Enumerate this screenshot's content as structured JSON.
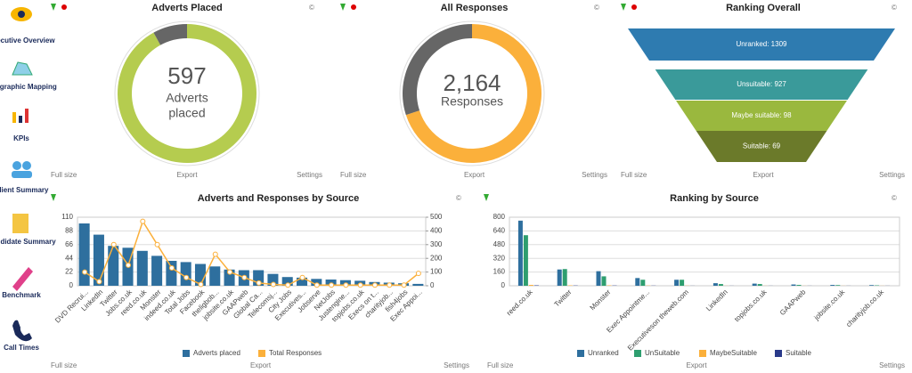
{
  "sidebar": [
    "Executive Overview",
    "Geographic Mapping",
    "KPIs",
    "Client Summary",
    "Candidate Summary",
    "Benchmark",
    "Call Times"
  ],
  "panel_links": {
    "full_size": "Full size",
    "export": "Export",
    "settings": "Settings",
    "copyright": "©"
  },
  "chart_data": [
    {
      "type": "donut",
      "title": "Adverts Placed",
      "center_value": 597,
      "center_label_lines": [
        "Adverts",
        "placed"
      ],
      "values": [
        92,
        8
      ],
      "colors": [
        "#b5cc4f",
        "#666666"
      ]
    },
    {
      "type": "donut",
      "title": "All Responses",
      "center_value": 2164,
      "center_value_label": "2,164",
      "center_label_lines": [
        "Responses"
      ],
      "values": [
        70,
        30
      ],
      "colors": [
        "#fbb03b",
        "#666666"
      ]
    },
    {
      "type": "funnel",
      "title": "Ranking Overall",
      "categories": [
        "Unranked",
        "Unsuitable",
        "Maybe suitable",
        "Suitable"
      ],
      "values": [
        1309,
        927,
        98,
        69
      ],
      "value_labels": [
        "Unranked: 1309",
        "Unsuitable: 927",
        "Maybe suitable: 98",
        "Suitable: 69"
      ],
      "colors": [
        "#2e7bb0",
        "#3a9a9a",
        "#9ab83e",
        "#6b7a2a"
      ]
    },
    {
      "type": "bar_line",
      "title": "Adverts and Responses by Source",
      "categories": [
        "DVD Recrui...",
        "LinkedIn",
        "Twitter",
        "Jobs.co.uk",
        "reed.co.uk",
        "Monster",
        "indeed.co.uk",
        "Total Jobs",
        "Facebook",
        "theligbob...",
        "jobsite.co.uk",
        "GAAPweb",
        "Global Ca...",
        "Telecomsj...",
        "City Jobs",
        "Executives...",
        "Jobserve",
        "NetJobs",
        "Justengine...",
        "topjobs.co.uk",
        "Execs on t...",
        "charityjob...",
        "fish4jobs",
        "Exec Appoi..."
      ],
      "series": [
        {
          "name": "Adverts placed",
          "color": "#2e6f9e",
          "values": [
            100,
            82,
            64,
            61,
            56,
            48,
            40,
            38,
            35,
            31,
            26,
            25,
            25,
            19,
            14,
            13,
            11,
            10,
            9,
            8,
            6,
            5,
            4,
            3
          ]
        },
        {
          "name": "Total Responses",
          "color": "#fbb03b",
          "axis": "y2",
          "values": [
            100,
            30,
            300,
            150,
            470,
            300,
            130,
            60,
            10,
            230,
            100,
            60,
            20,
            10,
            5,
            60,
            5,
            5,
            5,
            5,
            5,
            5,
            5,
            90
          ]
        }
      ],
      "ylim": [
        0,
        110
      ],
      "yticks": [
        0,
        22,
        44,
        66,
        88,
        110
      ],
      "y2lim": [
        0,
        500
      ],
      "y2ticks": [
        0,
        100,
        200,
        300,
        400,
        500
      ],
      "grid": true
    },
    {
      "type": "grouped_bar",
      "title": "Ranking by Source",
      "categories": [
        "reed.co.uk",
        "Twitter",
        "Monster",
        "Exec Appointme...",
        "Executiveson theweb.com",
        "LinkedIn",
        "topjobs.co.uk",
        "GAAPweb",
        "jobsite.co.uk",
        "charityjob.co.uk"
      ],
      "series": [
        {
          "name": "Unranked",
          "color": "#2e6f9e",
          "values": [
            760,
            190,
            170,
            90,
            70,
            30,
            25,
            15,
            10,
            8
          ]
        },
        {
          "name": "UnSuitable",
          "color": "#2e9e6f",
          "values": [
            590,
            195,
            110,
            70,
            70,
            20,
            20,
            10,
            8,
            5
          ]
        },
        {
          "name": "MaybeSuitable",
          "color": "#fbb03b",
          "values": [
            10,
            5,
            5,
            3,
            2,
            1,
            1,
            1,
            1,
            1
          ]
        },
        {
          "name": "Suitable",
          "color": "#2a3a8a",
          "values": [
            5,
            3,
            3,
            2,
            1,
            1,
            1,
            1,
            1,
            1
          ]
        }
      ],
      "ylim": [
        0,
        800
      ],
      "yticks": [
        0,
        160,
        320,
        480,
        640,
        800
      ],
      "grid": true
    }
  ]
}
